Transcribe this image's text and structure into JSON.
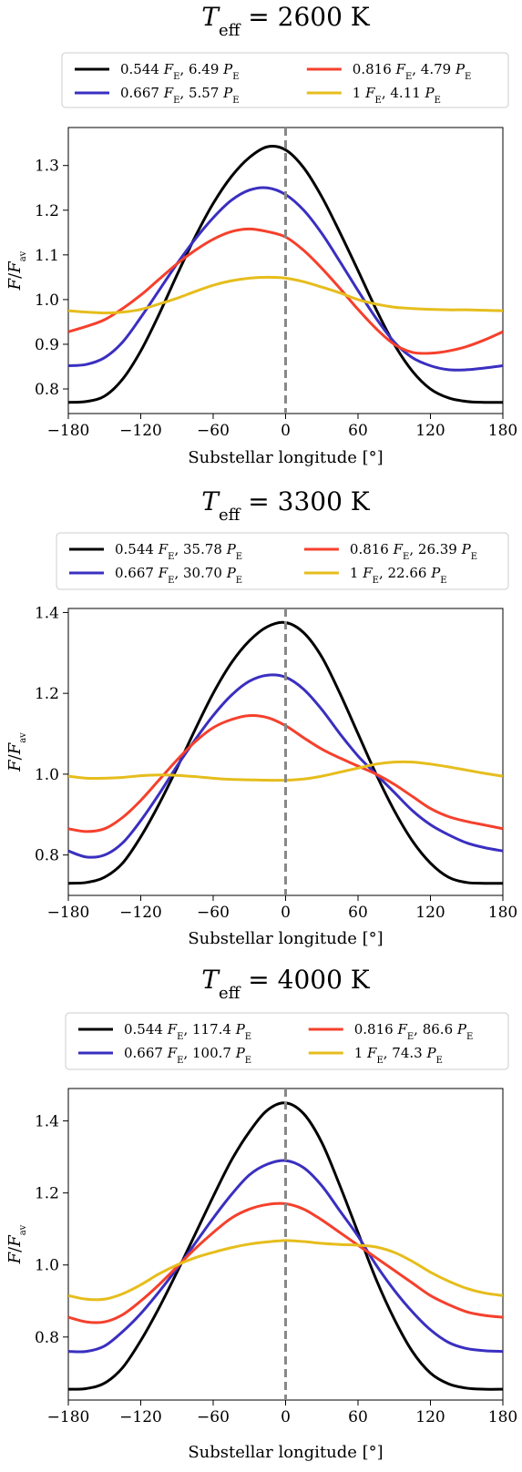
{
  "chart_data": [
    {
      "type": "line",
      "title": "T_eff = 2600 K",
      "title_parts": {
        "symbol": "T",
        "subscript": "eff",
        "rest": " = 2600 K"
      },
      "xlabel": "Substellar longitude [°]",
      "ylabel": "F/F_av",
      "ylabel_parts": {
        "numerator": "F",
        "denominator": "F",
        "subscript": "av"
      },
      "xlim": [
        -180,
        180
      ],
      "ylim": [
        0.745,
        1.385
      ],
      "xticks": [
        -180,
        -120,
        -60,
        0,
        60,
        120,
        180
      ],
      "xtick_labels": [
        "−180",
        "−120",
        "−60",
        "0",
        "60",
        "120",
        "180"
      ],
      "yticks": [
        0.8,
        0.9,
        1.0,
        1.1,
        1.2,
        1.3
      ],
      "ytick_labels": [
        "0.8",
        "0.9",
        "1.0",
        "1.1",
        "1.2",
        "1.3"
      ],
      "substellar_marker_x": 0,
      "legend_position": "top",
      "series": [
        {
          "name": "0.544 F_E, 6.49 P_E",
          "color": "#000000",
          "label_parts": {
            "flux": "0.544",
            "period": "6.49"
          },
          "x": [
            -180,
            -165,
            -150,
            -135,
            -120,
            -105,
            -90,
            -75,
            -60,
            -45,
            -30,
            -15,
            0,
            15,
            30,
            45,
            60,
            75,
            90,
            105,
            120,
            135,
            150,
            165,
            180
          ],
          "y": [
            0.77,
            0.772,
            0.784,
            0.822,
            0.885,
            0.966,
            1.055,
            1.14,
            1.215,
            1.275,
            1.318,
            1.342,
            1.335,
            1.295,
            1.23,
            1.15,
            1.065,
            0.978,
            0.9,
            0.84,
            0.8,
            0.78,
            0.772,
            0.77,
            0.77
          ]
        },
        {
          "name": "0.667 F_E, 5.57 P_E",
          "color": "#3a2fc0",
          "label_parts": {
            "flux": "0.667",
            "period": "5.57"
          },
          "x": [
            -180,
            -165,
            -150,
            -135,
            -120,
            -105,
            -90,
            -75,
            -60,
            -45,
            -30,
            -15,
            0,
            15,
            30,
            45,
            60,
            75,
            90,
            105,
            120,
            135,
            150,
            165,
            180
          ],
          "y": [
            0.852,
            0.855,
            0.87,
            0.905,
            0.96,
            1.02,
            1.08,
            1.135,
            1.183,
            1.222,
            1.245,
            1.25,
            1.235,
            1.2,
            1.148,
            1.085,
            1.02,
            0.958,
            0.905,
            0.87,
            0.852,
            0.843,
            0.843,
            0.847,
            0.852
          ]
        },
        {
          "name": "0.816 F_E, 4.79 P_E",
          "color": "#f5402c",
          "label_parts": {
            "flux": "0.816",
            "period": "4.79"
          },
          "x": [
            -180,
            -165,
            -150,
            -135,
            -120,
            -105,
            -90,
            -75,
            -60,
            -45,
            -30,
            -15,
            0,
            15,
            30,
            45,
            60,
            75,
            90,
            105,
            120,
            135,
            150,
            165,
            180
          ],
          "y": [
            0.928,
            0.94,
            0.955,
            0.98,
            1.01,
            1.045,
            1.08,
            1.11,
            1.135,
            1.152,
            1.158,
            1.152,
            1.14,
            1.11,
            1.07,
            1.025,
            0.978,
            0.935,
            0.9,
            0.882,
            0.88,
            0.885,
            0.895,
            0.91,
            0.928
          ]
        },
        {
          "name": "1 F_E, 4.11 P_E",
          "color": "#e6bd1c",
          "label_parts": {
            "flux": "1",
            "period": "4.11"
          },
          "x": [
            -180,
            -165,
            -150,
            -135,
            -120,
            -105,
            -90,
            -75,
            -60,
            -45,
            -30,
            -15,
            0,
            15,
            30,
            45,
            60,
            75,
            90,
            105,
            120,
            135,
            150,
            165,
            180
          ],
          "y": [
            0.975,
            0.972,
            0.97,
            0.972,
            0.978,
            0.99,
            1.003,
            1.018,
            1.032,
            1.042,
            1.048,
            1.05,
            1.048,
            1.04,
            1.028,
            1.015,
            1.0,
            0.99,
            0.983,
            0.98,
            0.978,
            0.977,
            0.977,
            0.976,
            0.975
          ]
        }
      ]
    },
    {
      "type": "line",
      "title": "T_eff = 3300 K",
      "title_parts": {
        "symbol": "T",
        "subscript": "eff",
        "rest": " = 3300 K"
      },
      "xlabel": "Substellar longitude [°]",
      "ylabel": "F/F_av",
      "ylabel_parts": {
        "numerator": "F",
        "denominator": "F",
        "subscript": "av"
      },
      "xlim": [
        -180,
        180
      ],
      "ylim": [
        0.7,
        1.41
      ],
      "xticks": [
        -180,
        -120,
        -60,
        0,
        60,
        120,
        180
      ],
      "xtick_labels": [
        "−180",
        "−120",
        "−60",
        "0",
        "60",
        "120",
        "180"
      ],
      "yticks": [
        0.8,
        1.0,
        1.2,
        1.4
      ],
      "ytick_labels": [
        "0.8",
        "1.0",
        "1.2",
        "1.4"
      ],
      "substellar_marker_x": 0,
      "legend_position": "top",
      "series": [
        {
          "name": "0.544 F_E, 35.78 P_E",
          "color": "#000000",
          "label_parts": {
            "flux": "0.544",
            "period": "35.78"
          },
          "x": [
            -180,
            -165,
            -150,
            -135,
            -120,
            -105,
            -90,
            -75,
            -60,
            -45,
            -30,
            -15,
            0,
            15,
            30,
            45,
            60,
            75,
            90,
            105,
            120,
            135,
            150,
            165,
            180
          ],
          "y": [
            0.73,
            0.732,
            0.745,
            0.78,
            0.845,
            0.925,
            1.015,
            1.11,
            1.2,
            1.275,
            1.33,
            1.365,
            1.375,
            1.35,
            1.29,
            1.2,
            1.1,
            1.0,
            0.91,
            0.835,
            0.78,
            0.745,
            0.732,
            0.73,
            0.73
          ]
        },
        {
          "name": "0.667 F_E, 30.70 P_E",
          "color": "#3a2fc0",
          "label_parts": {
            "flux": "0.667",
            "period": "30.70"
          },
          "x": [
            -180,
            -165,
            -150,
            -135,
            -120,
            -105,
            -90,
            -75,
            -60,
            -45,
            -30,
            -15,
            0,
            15,
            30,
            45,
            60,
            75,
            90,
            105,
            120,
            135,
            150,
            165,
            180
          ],
          "y": [
            0.81,
            0.795,
            0.8,
            0.83,
            0.885,
            0.95,
            1.02,
            1.085,
            1.145,
            1.195,
            1.23,
            1.245,
            1.24,
            1.21,
            1.16,
            1.1,
            1.045,
            1.0,
            0.955,
            0.91,
            0.875,
            0.85,
            0.83,
            0.818,
            0.81
          ]
        },
        {
          "name": "0.816 F_E, 26.39 P_E",
          "color": "#f5402c",
          "label_parts": {
            "flux": "0.816",
            "period": "26.39"
          },
          "x": [
            -180,
            -165,
            -150,
            -135,
            -120,
            -105,
            -90,
            -75,
            -60,
            -45,
            -30,
            -15,
            0,
            15,
            30,
            45,
            60,
            75,
            90,
            105,
            120,
            135,
            150,
            165,
            180
          ],
          "y": [
            0.865,
            0.858,
            0.865,
            0.893,
            0.935,
            0.985,
            1.035,
            1.08,
            1.115,
            1.135,
            1.145,
            1.14,
            1.12,
            1.09,
            1.062,
            1.04,
            1.02,
            1.0,
            0.975,
            0.945,
            0.915,
            0.895,
            0.883,
            0.874,
            0.865
          ]
        },
        {
          "name": "1 F_E, 22.66 P_E",
          "color": "#e6bd1c",
          "label_parts": {
            "flux": "1",
            "period": "22.66"
          },
          "x": [
            -180,
            -165,
            -150,
            -135,
            -120,
            -105,
            -90,
            -75,
            -60,
            -45,
            -30,
            -15,
            0,
            15,
            30,
            45,
            60,
            75,
            90,
            105,
            120,
            135,
            150,
            165,
            180
          ],
          "y": [
            0.995,
            0.99,
            0.99,
            0.992,
            0.996,
            0.998,
            0.997,
            0.994,
            0.99,
            0.987,
            0.986,
            0.985,
            0.985,
            0.988,
            0.995,
            1.005,
            1.015,
            1.025,
            1.03,
            1.03,
            1.025,
            1.018,
            1.01,
            1.002,
            0.995
          ]
        }
      ]
    },
    {
      "type": "line",
      "title": "T_eff = 4000 K",
      "title_parts": {
        "symbol": "T",
        "subscript": "eff",
        "rest": " = 4000 K"
      },
      "xlabel": "Substellar longitude [°]",
      "ylabel": "F/F_av",
      "ylabel_parts": {
        "numerator": "F",
        "denominator": "F",
        "subscript": "av"
      },
      "xlim": [
        -180,
        180
      ],
      "ylim": [
        0.625,
        1.49
      ],
      "xticks": [
        -180,
        -120,
        -60,
        0,
        60,
        120,
        180
      ],
      "xtick_labels": [
        "−180",
        "−120",
        "−60",
        "0",
        "60",
        "120",
        "180"
      ],
      "yticks": [
        0.8,
        1.0,
        1.2,
        1.4
      ],
      "ytick_labels": [
        "0.8",
        "1.0",
        "1.2",
        "1.4"
      ],
      "substellar_marker_x": 0,
      "legend_position": "top",
      "series": [
        {
          "name": "0.544 F_E, 117.4 P_E",
          "color": "#000000",
          "label_parts": {
            "flux": "0.544",
            "period": "117.4"
          },
          "x": [
            -180,
            -165,
            -150,
            -135,
            -120,
            -105,
            -90,
            -75,
            -60,
            -45,
            -30,
            -15,
            0,
            15,
            30,
            45,
            60,
            75,
            90,
            105,
            120,
            135,
            150,
            165,
            180
          ],
          "y": [
            0.655,
            0.657,
            0.672,
            0.715,
            0.79,
            0.88,
            0.98,
            1.085,
            1.19,
            1.29,
            1.37,
            1.43,
            1.45,
            1.42,
            1.34,
            1.22,
            1.09,
            0.96,
            0.85,
            0.76,
            0.7,
            0.67,
            0.658,
            0.655,
            0.655
          ]
        },
        {
          "name": "0.667 F_E, 100.7 P_E",
          "color": "#3a2fc0",
          "label_parts": {
            "flux": "0.667",
            "period": "100.7"
          },
          "x": [
            -180,
            -165,
            -150,
            -135,
            -120,
            -105,
            -90,
            -75,
            -60,
            -45,
            -30,
            -15,
            0,
            15,
            30,
            45,
            60,
            75,
            90,
            105,
            120,
            135,
            150,
            165,
            180
          ],
          "y": [
            0.76,
            0.76,
            0.775,
            0.815,
            0.865,
            0.925,
            0.99,
            1.06,
            1.13,
            1.195,
            1.25,
            1.28,
            1.29,
            1.27,
            1.22,
            1.15,
            1.08,
            1.0,
            0.93,
            0.87,
            0.82,
            0.785,
            0.768,
            0.762,
            0.76
          ]
        },
        {
          "name": "0.816 F_E, 86.6 P_E",
          "color": "#f5402c",
          "label_parts": {
            "flux": "0.816",
            "period": "86.6"
          },
          "x": [
            -180,
            -165,
            -150,
            -135,
            -120,
            -105,
            -90,
            -75,
            -60,
            -45,
            -30,
            -15,
            0,
            15,
            30,
            45,
            60,
            75,
            90,
            105,
            120,
            135,
            150,
            165,
            180
          ],
          "y": [
            0.855,
            0.842,
            0.842,
            0.862,
            0.9,
            0.945,
            0.995,
            1.045,
            1.09,
            1.13,
            1.155,
            1.168,
            1.17,
            1.155,
            1.125,
            1.09,
            1.055,
            1.02,
            0.985,
            0.95,
            0.915,
            0.89,
            0.87,
            0.86,
            0.855
          ]
        },
        {
          "name": "1 F_E, 74.3 P_E",
          "color": "#e6bd1c",
          "label_parts": {
            "flux": "1",
            "period": "74.3"
          },
          "x": [
            -180,
            -165,
            -150,
            -135,
            -120,
            -105,
            -90,
            -75,
            -60,
            -45,
            -30,
            -15,
            0,
            15,
            30,
            45,
            60,
            75,
            90,
            105,
            120,
            135,
            150,
            165,
            180
          ],
          "y": [
            0.915,
            0.905,
            0.905,
            0.92,
            0.945,
            0.975,
            1.0,
            1.02,
            1.035,
            1.048,
            1.058,
            1.064,
            1.068,
            1.065,
            1.06,
            1.057,
            1.055,
            1.05,
            1.035,
            1.01,
            0.98,
            0.955,
            0.935,
            0.922,
            0.915
          ]
        }
      ]
    }
  ]
}
